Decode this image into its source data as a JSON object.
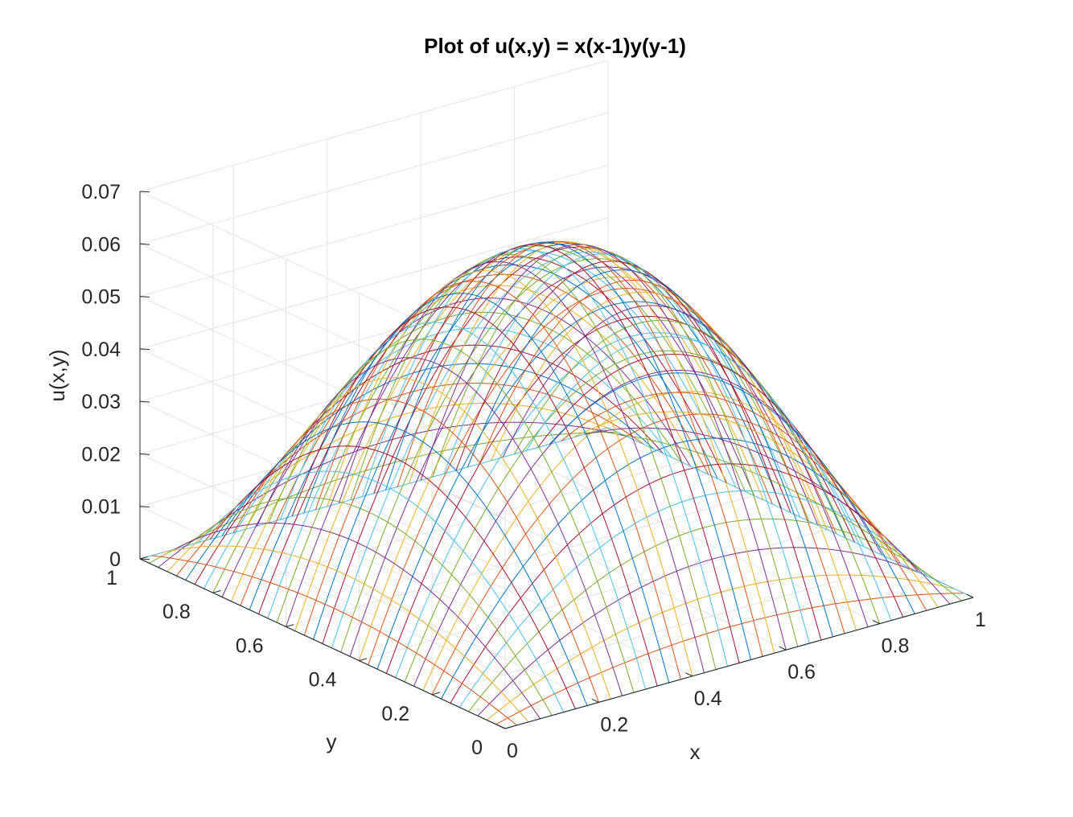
{
  "chart_data": {
    "type": "line",
    "subtype": "3d-mesh-lines",
    "title": "Plot of u(x,y) = x(x-1)y(y-1)",
    "function": "u(x,y) = x(x-1)y(y-1)",
    "xlabel": "x",
    "ylabel": "y",
    "zlabel": "u(x,y)",
    "xlim": [
      0,
      1
    ],
    "ylim": [
      0,
      1
    ],
    "zlim": [
      0,
      0.07
    ],
    "grid": true,
    "x_ticks": [
      "0",
      "0.2",
      "0.4",
      "0.6",
      "0.8",
      "1"
    ],
    "y_ticks": [
      "0",
      "0.2",
      "0.4",
      "0.6",
      "0.8",
      "1"
    ],
    "z_ticks": [
      "0",
      "0.01",
      "0.02",
      "0.03",
      "0.04",
      "0.05",
      "0.06",
      "0.07"
    ],
    "x_tick_values": [
      0,
      0.2,
      0.4,
      0.6,
      0.8,
      1
    ],
    "y_tick_values": [
      0,
      0.2,
      0.4,
      0.6,
      0.8,
      1
    ],
    "z_tick_values": [
      0,
      0.01,
      0.02,
      0.03,
      0.04,
      0.05,
      0.06,
      0.07
    ],
    "grid_points": 41,
    "peak": {
      "x": 0.5,
      "y": 0.5,
      "u": 0.0625
    },
    "line_colors": [
      "#0072BD",
      "#D95319",
      "#EDB120",
      "#7E2F8E",
      "#77AC30",
      "#4DBEEE",
      "#A2142F"
    ],
    "axis_color": "#262626",
    "grid_color": "#e3e3e3"
  }
}
